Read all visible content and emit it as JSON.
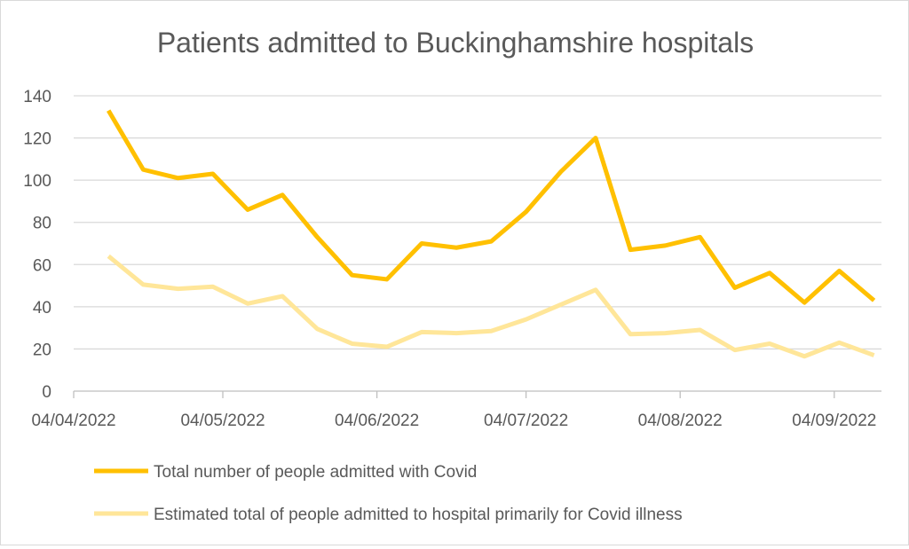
{
  "chart_data": {
    "type": "line",
    "title": "Patients admitted to Buckinghamshire hospitals",
    "xlabel": "",
    "ylabel": "",
    "ylim": [
      0,
      140
    ],
    "yticks": [
      "0",
      "20",
      "40",
      "60",
      "80",
      "100",
      "120",
      "140"
    ],
    "xtick_labels": [
      "04/04/2022",
      "04/05/2022",
      "04/06/2022",
      "04/07/2022",
      "04/08/2022",
      "04/09/2022"
    ],
    "xtick_days": [
      0,
      30,
      61,
      91,
      122,
      153
    ],
    "x_days": [
      7,
      14,
      21,
      28,
      35,
      42,
      49,
      56,
      63,
      70,
      77,
      84,
      91,
      98,
      105,
      112,
      119,
      126,
      133,
      140,
      147,
      154,
      161
    ],
    "grid": true,
    "legend_position": "bottom",
    "series": [
      {
        "name": "Total number of people admitted with Covid",
        "color": "#FFC000",
        "values": [
          133,
          105,
          101,
          103,
          86,
          93,
          73,
          55,
          53,
          70,
          68,
          71,
          85,
          104,
          120,
          67,
          69,
          73,
          49,
          56,
          42,
          57,
          43
        ]
      },
      {
        "name": "Estimated total of people admitted to hospital primarily for Covid illness",
        "color": "#FFE699",
        "values": [
          64,
          50.5,
          48.5,
          49.5,
          41.5,
          45,
          29.5,
          22.5,
          21,
          28,
          27.5,
          28.5,
          34,
          41,
          48,
          27,
          27.5,
          29,
          19.5,
          22.5,
          16.5,
          23,
          17
        ]
      }
    ]
  }
}
